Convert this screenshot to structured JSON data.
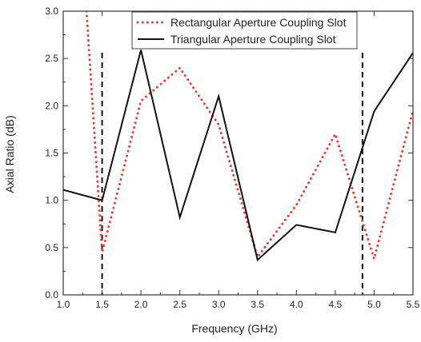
{
  "chart_data": {
    "type": "line",
    "xlabel": "Frequency (GHz)",
    "ylabel": "Axial Ratio (dB)",
    "xlim": [
      1.0,
      5.5
    ],
    "ylim": [
      0.0,
      3.0
    ],
    "x_ticks": [
      "1.0",
      "1.5",
      "2.0",
      "2.5",
      "3.0",
      "3.5",
      "4.0",
      "4.5",
      "5.0",
      "5.5"
    ],
    "y_ticks": [
      "0.0",
      "0.5",
      "1.0",
      "1.5",
      "2.0",
      "2.5",
      "3.0"
    ],
    "grid": false,
    "legend_position": "top-center",
    "series": [
      {
        "name": "Rectangular Aperture Coupling Slot",
        "color": "#e0443c",
        "style": "dotted",
        "x": [
          1.3,
          1.5,
          2.0,
          2.5,
          3.0,
          3.5,
          4.0,
          4.5,
          5.0,
          5.5
        ],
        "y": [
          3.0,
          0.45,
          2.05,
          2.4,
          1.8,
          0.4,
          0.95,
          1.7,
          0.38,
          1.95
        ]
      },
      {
        "name": "Triangular Aperture Coupling Slot",
        "color": "#111111",
        "style": "solid",
        "x": [
          1.0,
          1.5,
          2.0,
          2.5,
          3.0,
          3.5,
          4.0,
          4.5,
          5.0,
          5.5
        ],
        "y": [
          1.11,
          1.0,
          2.59,
          0.82,
          2.1,
          0.37,
          0.74,
          0.66,
          1.94,
          2.56
        ]
      }
    ],
    "reference_lines": [
      {
        "axis": "x",
        "value": 1.5,
        "style": "dashed",
        "color": "#111111"
      },
      {
        "axis": "x",
        "value": 4.85,
        "style": "dashed",
        "color": "#111111"
      }
    ]
  }
}
